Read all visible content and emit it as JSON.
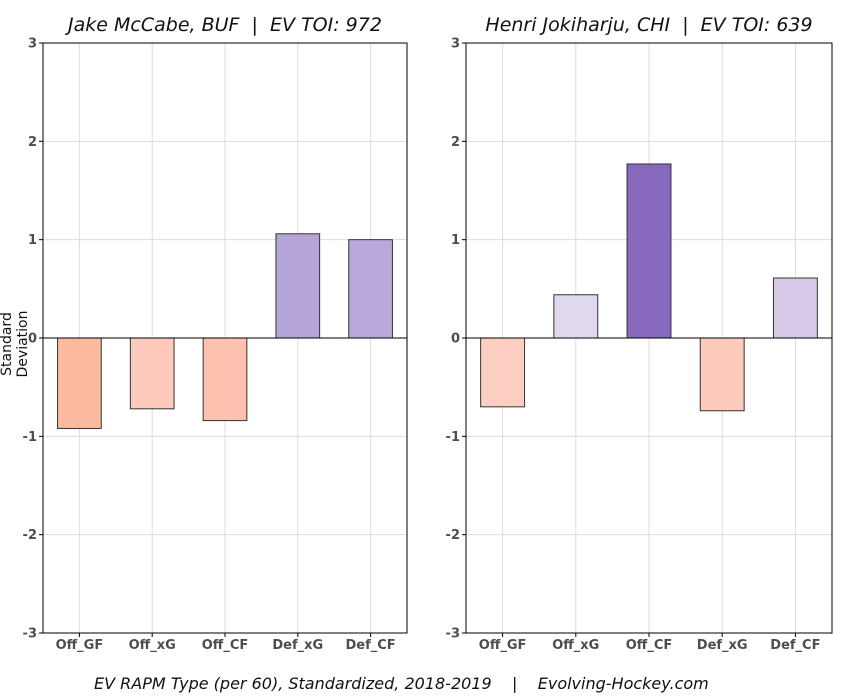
{
  "chart_data": [
    {
      "type": "bar",
      "title": "Jake McCabe, BUF  |  EV TOI: 972",
      "ylabel": "Standard Deviation",
      "categories": [
        "Off_GF",
        "Off_xG",
        "Off_CF",
        "Def_xG",
        "Def_CF"
      ],
      "values": [
        -0.92,
        -0.72,
        -0.84,
        1.06,
        1.0
      ],
      "colors": [
        "#fcbba1",
        "#fdcabb",
        "#fdc1b0",
        "#b5a4d6",
        "#b9a8da"
      ],
      "ylim": [
        -3,
        3
      ],
      "yticks": [
        "-3",
        "-2",
        "-1",
        "0",
        "1",
        "2",
        "3"
      ],
      "grid": true
    },
    {
      "type": "bar",
      "title": "Henri Jokiharju, CHI  |  EV TOI: 639",
      "categories": [
        "Off_GF",
        "Off_xG",
        "Off_CF",
        "Def_xG",
        "Def_CF"
      ],
      "values": [
        -0.7,
        0.44,
        1.77,
        -0.74,
        0.61
      ],
      "colors": [
        "#fdcfc2",
        "#e0d8ed",
        "#8669bd",
        "#fdcbbb",
        "#d6c9e7"
      ],
      "ylim": [
        -3,
        3
      ],
      "yticks": [
        "-3",
        "-2",
        "-1",
        "0",
        "1",
        "2",
        "3"
      ],
      "grid": true
    }
  ],
  "caption": "EV RAPM Type (per 60), Standardized, 2018-2019    |    Evolving-Hockey.com"
}
